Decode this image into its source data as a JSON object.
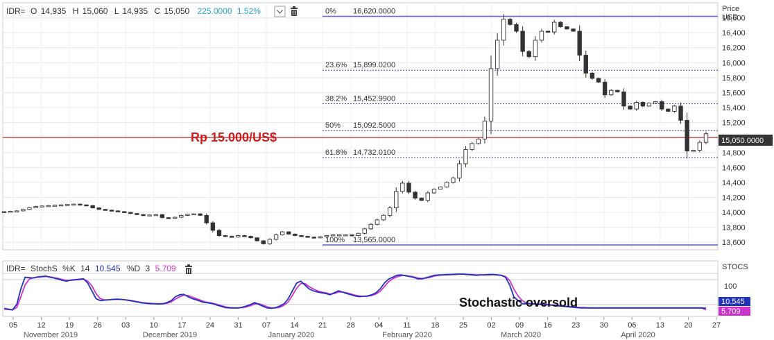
{
  "header": {
    "symbol": "IDR=",
    "open_label": "O",
    "open": "14,935",
    "high_label": "H",
    "high": "15,060",
    "low_label": "L",
    "low": "14,935",
    "close_label": "C",
    "close": "15,050",
    "change": "225.0000",
    "change_pct": "1.52%",
    "change_color": "#2ba3c8"
  },
  "price_axis": {
    "title_line1": "Price",
    "title_line2": "USD",
    "current_price": "15,050.0000"
  },
  "stoch_header": {
    "symbol": "IDR=",
    "name": "StochS",
    "k_label": "%K",
    "k_period": "14",
    "k_value": "10.545",
    "d_label": "%D",
    "d_period": "3",
    "d_value": "5.709"
  },
  "stoch_axis": {
    "title": "STOCS",
    "level": "100",
    "k_badge": "10.545",
    "d_badge": "5.709",
    "k_color": "#2233bb",
    "d_color": "#cc33cc"
  },
  "annotations": {
    "rupiah_label": "Rp 15.000/US$",
    "rupiah_color": "#cc1f1f",
    "stoch_note": "Stochastic oversold"
  },
  "icons": [
    "dropdown-icon",
    "trash-icon"
  ],
  "chart_data": [
    {
      "type": "candlestick",
      "ylim": [
        13500,
        16800
      ],
      "y_ticks": [
        "13,600",
        "13,800",
        "14,000",
        "14,200",
        "14,400",
        "14,600",
        "14,800",
        "15,000",
        "15,200",
        "15,400",
        "15,600",
        "15,800",
        "16,000",
        "16,200",
        "16,400",
        "16,600"
      ],
      "y_tick_values": [
        13600,
        13800,
        14000,
        14200,
        14400,
        14600,
        14800,
        15000,
        15200,
        15400,
        15600,
        15800,
        16000,
        16200,
        16400,
        16600
      ],
      "x_ticks": [
        "05",
        "12",
        "19",
        "26",
        "03",
        "10",
        "17",
        "24",
        "31",
        "07",
        "14",
        "21",
        "28",
        "04",
        "11",
        "18",
        "25",
        "02",
        "09",
        "16",
        "23",
        "30",
        "06",
        "13",
        "20",
        "27"
      ],
      "months": [
        "November 2019",
        "December 2019",
        "January 2020",
        "February 2020",
        "March 2020",
        "April 2020"
      ],
      "fib_levels": [
        {
          "pct": "0%",
          "value": "16,620.0000",
          "y": 16620
        },
        {
          "pct": "23.6%",
          "value": "15,899.0200",
          "y": 15899.02
        },
        {
          "pct": "38.2%",
          "value": "15,452.9900",
          "y": 15452.99
        },
        {
          "pct": "50%",
          "value": "15,092.5000",
          "y": 15092.5
        },
        {
          "pct": "61.8%",
          "value": "14,732.0100",
          "y": 14732.01
        },
        {
          "pct": "100%",
          "value": "13,565.0000",
          "y": 13565
        }
      ],
      "reference_line": 15000,
      "close_values": [
        14010,
        14015,
        14020,
        14040,
        14060,
        14080,
        14085,
        14090,
        14095,
        14100,
        14105,
        14110,
        14100,
        14090,
        14060,
        14040,
        14030,
        14020,
        14010,
        14000,
        13985,
        13970,
        13960,
        13965,
        13970,
        13930,
        13920,
        13935,
        13960,
        13975,
        13980,
        13960,
        13860,
        13760,
        13690,
        13680,
        13670,
        13690,
        13680,
        13660,
        13620,
        13580,
        13640,
        13700,
        13740,
        13710,
        13690,
        13680,
        13670,
        13660,
        13675,
        13690,
        13700,
        13700,
        13700,
        13690,
        13720,
        13780,
        13840,
        13900,
        13960,
        14060,
        14280,
        14390,
        14270,
        14190,
        14160,
        14260,
        14310,
        14340,
        14400,
        14460,
        14650,
        14840,
        14920,
        14980,
        15220,
        15920,
        16300,
        16580,
        16510,
        16420,
        16150,
        16080,
        16300,
        16420,
        16410,
        16540,
        16480,
        16450,
        16420,
        16100,
        15860,
        15790,
        15740,
        15570,
        15630,
        15610,
        15420,
        15380,
        15470,
        15420,
        15460,
        15480,
        15380,
        15350,
        15420,
        15230,
        14820,
        14830,
        14935,
        15050
      ]
    },
    {
      "type": "line",
      "ylim": [
        0,
        100
      ],
      "level": 100,
      "series": [
        {
          "name": "%K",
          "values": [
            10,
            8,
            6,
            20,
            60,
            90,
            89,
            88,
            91,
            92,
            93,
            90,
            88,
            85,
            82,
            80,
            83,
            84,
            85,
            86,
            75,
            55,
            35,
            30,
            31,
            32,
            33,
            34,
            33,
            32,
            30,
            28,
            26,
            24,
            23,
            22,
            22,
            21,
            22,
            25,
            30,
            40,
            45,
            46,
            40,
            35,
            32,
            28,
            25,
            24,
            22,
            18,
            15,
            12,
            11,
            11,
            11,
            13,
            16,
            20,
            25,
            20,
            15,
            11,
            10,
            12,
            16,
            22,
            35,
            55,
            75,
            80,
            70,
            60,
            55,
            52,
            50,
            48,
            45,
            50,
            55,
            52,
            48,
            45,
            42,
            40,
            41,
            42,
            45,
            50,
            60,
            75,
            85,
            90,
            95,
            96,
            94,
            92,
            90,
            86,
            86,
            89,
            92,
            95,
            96,
            96,
            97,
            97,
            98,
            98,
            98,
            97,
            96,
            95,
            96,
            96,
            97,
            97,
            96,
            95,
            90,
            70,
            40,
            30,
            22,
            22,
            22,
            21,
            20,
            20,
            19,
            18,
            17,
            16,
            15,
            14,
            13,
            12,
            11,
            11,
            11,
            11,
            11,
            11,
            11,
            11,
            11,
            11,
            11,
            11,
            11,
            11,
            11,
            11,
            11,
            11,
            11,
            11,
            11,
            11,
            11,
            11,
            11,
            11,
            11,
            11,
            11,
            11,
            10.545
          ]
        },
        {
          "name": "%D",
          "values": [
            8,
            7,
            6,
            12,
            40,
            70,
            85,
            89,
            90,
            91,
            92,
            91,
            89,
            87,
            84,
            82,
            82,
            83,
            84,
            85,
            80,
            68,
            48,
            35,
            32,
            32,
            33,
            33,
            33,
            32,
            31,
            29,
            27,
            25,
            24,
            23,
            22,
            22,
            22,
            23,
            27,
            34,
            40,
            44,
            43,
            39,
            35,
            31,
            27,
            25,
            23,
            20,
            17,
            14,
            12,
            11,
            11,
            12,
            14,
            17,
            21,
            22,
            18,
            14,
            11,
            11,
            13,
            18,
            27,
            43,
            62,
            74,
            74,
            66,
            60,
            55,
            52,
            50,
            47,
            48,
            52,
            52,
            50,
            47,
            44,
            42,
            41,
            41,
            43,
            47,
            54,
            66,
            78,
            86,
            91,
            94,
            95,
            93,
            91,
            88,
            87,
            88,
            90,
            93,
            95,
            96,
            96,
            97,
            97,
            98,
            98,
            97,
            97,
            96,
            96,
            96,
            96,
            97,
            96,
            95,
            92,
            82,
            60,
            42,
            30,
            24,
            22,
            22,
            21,
            21,
            20,
            19,
            18,
            17,
            16,
            15,
            14,
            13,
            12,
            12,
            11,
            11,
            11,
            11,
            11,
            11,
            11,
            11,
            11,
            11,
            11,
            11,
            11,
            11,
            11,
            11,
            11,
            11,
            11,
            11,
            11,
            11,
            11,
            11,
            11,
            11,
            11,
            11,
            5.709
          ]
        }
      ]
    }
  ]
}
